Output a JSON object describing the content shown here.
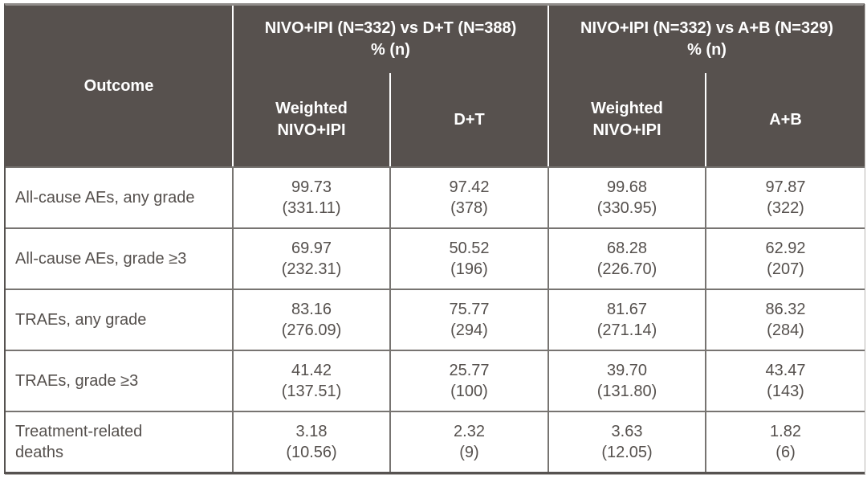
{
  "header": {
    "outcome": "Outcome",
    "groups": [
      {
        "line1": "NIVO+IPI (N=332) vs D+T (N=388)",
        "line2": "% (n)"
      },
      {
        "line1": "NIVO+IPI (N=332) vs A+B (N=329)",
        "line2": "% (n)"
      }
    ],
    "subcols": [
      {
        "line1": "Weighted",
        "line2": "NIVO+IPI"
      },
      {
        "line1": "D+T",
        "line2": ""
      },
      {
        "line1": "Weighted",
        "line2": "NIVO+IPI"
      },
      {
        "line1": "A+B",
        "line2": ""
      }
    ]
  },
  "rows": [
    {
      "outcome": "All-cause AEs, any grade",
      "cells": [
        {
          "pct": "99.73",
          "n": "(331.11)"
        },
        {
          "pct": "97.42",
          "n": "(378)"
        },
        {
          "pct": "99.68",
          "n": "(330.95)"
        },
        {
          "pct": "97.87",
          "n": "(322)"
        }
      ]
    },
    {
      "outcome": "All-cause AEs, grade ≥3",
      "cells": [
        {
          "pct": "69.97",
          "n": "(232.31)"
        },
        {
          "pct": "50.52",
          "n": "(196)"
        },
        {
          "pct": "68.28",
          "n": "(226.70)"
        },
        {
          "pct": "62.92",
          "n": "(207)"
        }
      ]
    },
    {
      "outcome": "TRAEs, any grade",
      "cells": [
        {
          "pct": "83.16",
          "n": "(276.09)"
        },
        {
          "pct": "75.77",
          "n": "(294)"
        },
        {
          "pct": "81.67",
          "n": "(271.14)"
        },
        {
          "pct": "86.32",
          "n": "(284)"
        }
      ]
    },
    {
      "outcome": "TRAEs, grade ≥3",
      "cells": [
        {
          "pct": "41.42",
          "n": "(137.51)"
        },
        {
          "pct": "25.77",
          "n": "(100)"
        },
        {
          "pct": "39.70",
          "n": "(131.80)"
        },
        {
          "pct": "43.47",
          "n": "(143)"
        }
      ]
    },
    {
      "outcome": "Treatment-related\ndeaths",
      "cells": [
        {
          "pct": "3.18",
          "n": "(10.56)"
        },
        {
          "pct": "2.32",
          "n": "(9)"
        },
        {
          "pct": "3.63",
          "n": "(12.05)"
        },
        {
          "pct": "1.82",
          "n": "(6)"
        }
      ]
    }
  ],
  "colors": {
    "header_bg": "#57514e",
    "header_text": "#ffffff",
    "body_text": "#55504d",
    "grid": "#777471",
    "frame": "#565250",
    "top_border": "#908c8a",
    "divider": "#ffffff"
  }
}
